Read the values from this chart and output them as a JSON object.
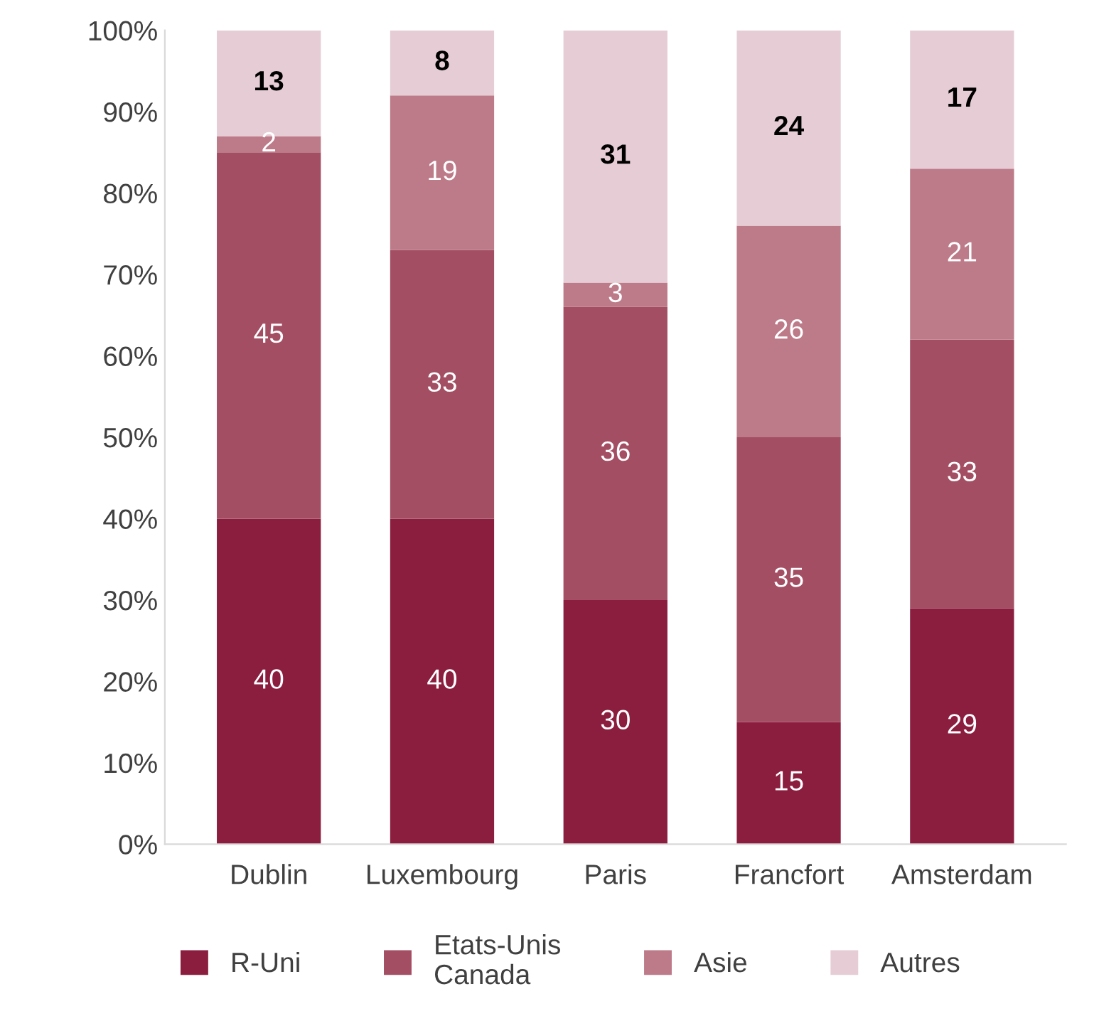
{
  "chart_data": {
    "type": "bar",
    "stacked": true,
    "categories": [
      "Dublin",
      "Luxembourg",
      "Paris",
      "Francfort",
      "Amsterdam"
    ],
    "series": [
      {
        "name": "R-Uni",
        "color": "#8b1e3f",
        "values": [
          40,
          40,
          30,
          15,
          29
        ]
      },
      {
        "name": "Etats-Unis\nCanada",
        "color": "#a34e63",
        "values": [
          45,
          33,
          36,
          35,
          33
        ]
      },
      {
        "name": "Asie",
        "color": "#bd7a88",
        "values": [
          2,
          19,
          3,
          26,
          21
        ]
      },
      {
        "name": "Autres",
        "color": "#e6cdd5",
        "values": [
          13,
          8,
          31,
          24,
          17
        ]
      }
    ],
    "ylim": [
      0,
      100
    ],
    "yticks": [
      {
        "value": 0,
        "label": "0%"
      },
      {
        "value": 10,
        "label": "10%"
      },
      {
        "value": 20,
        "label": "20%"
      },
      {
        "value": 30,
        "label": "30%"
      },
      {
        "value": 40,
        "label": "40%"
      },
      {
        "value": 50,
        "label": "50%"
      },
      {
        "value": 60,
        "label": "60%"
      },
      {
        "value": 70,
        "label": "70%"
      },
      {
        "value": 80,
        "label": "80%"
      },
      {
        "value": 90,
        "label": "90%"
      },
      {
        "value": 100,
        "label": "100%"
      }
    ],
    "data_labels": true,
    "grid": false,
    "legend": "bottom"
  }
}
